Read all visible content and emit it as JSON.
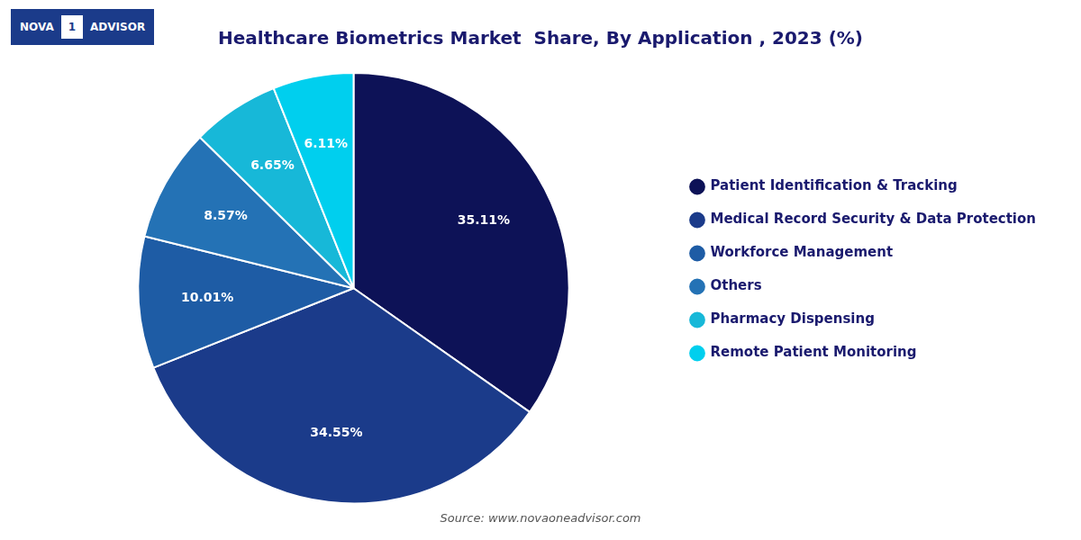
{
  "chart_data": {
    "type": "pie",
    "title": "Healthcare Biometrics Market  Share, By Application , 2023 (%)",
    "categories": [
      "Patient Identification & Tracking",
      "Medical Record Security & Data Protection",
      "Workforce Management",
      "Others",
      "Pharmacy Dispensing",
      "Remote Patient Monitoring"
    ],
    "values": [
      35.11,
      34.55,
      10.01,
      8.57,
      6.65,
      6.11
    ],
    "value_labels": [
      "35.11%",
      "34.55%",
      "10.01%",
      "8.57%",
      "6.65%",
      "6.11%"
    ],
    "colors": [
      "#0d1257",
      "#1b3b8a",
      "#1e5ca5",
      "#2472b5",
      "#17b8d8",
      "#00cfee"
    ],
    "data_labels": true,
    "legend": "right",
    "annotations": [
      "NOVA",
      "1",
      "ADVISOR",
      "Source: www.novaoneadvisor.com"
    ]
  }
}
